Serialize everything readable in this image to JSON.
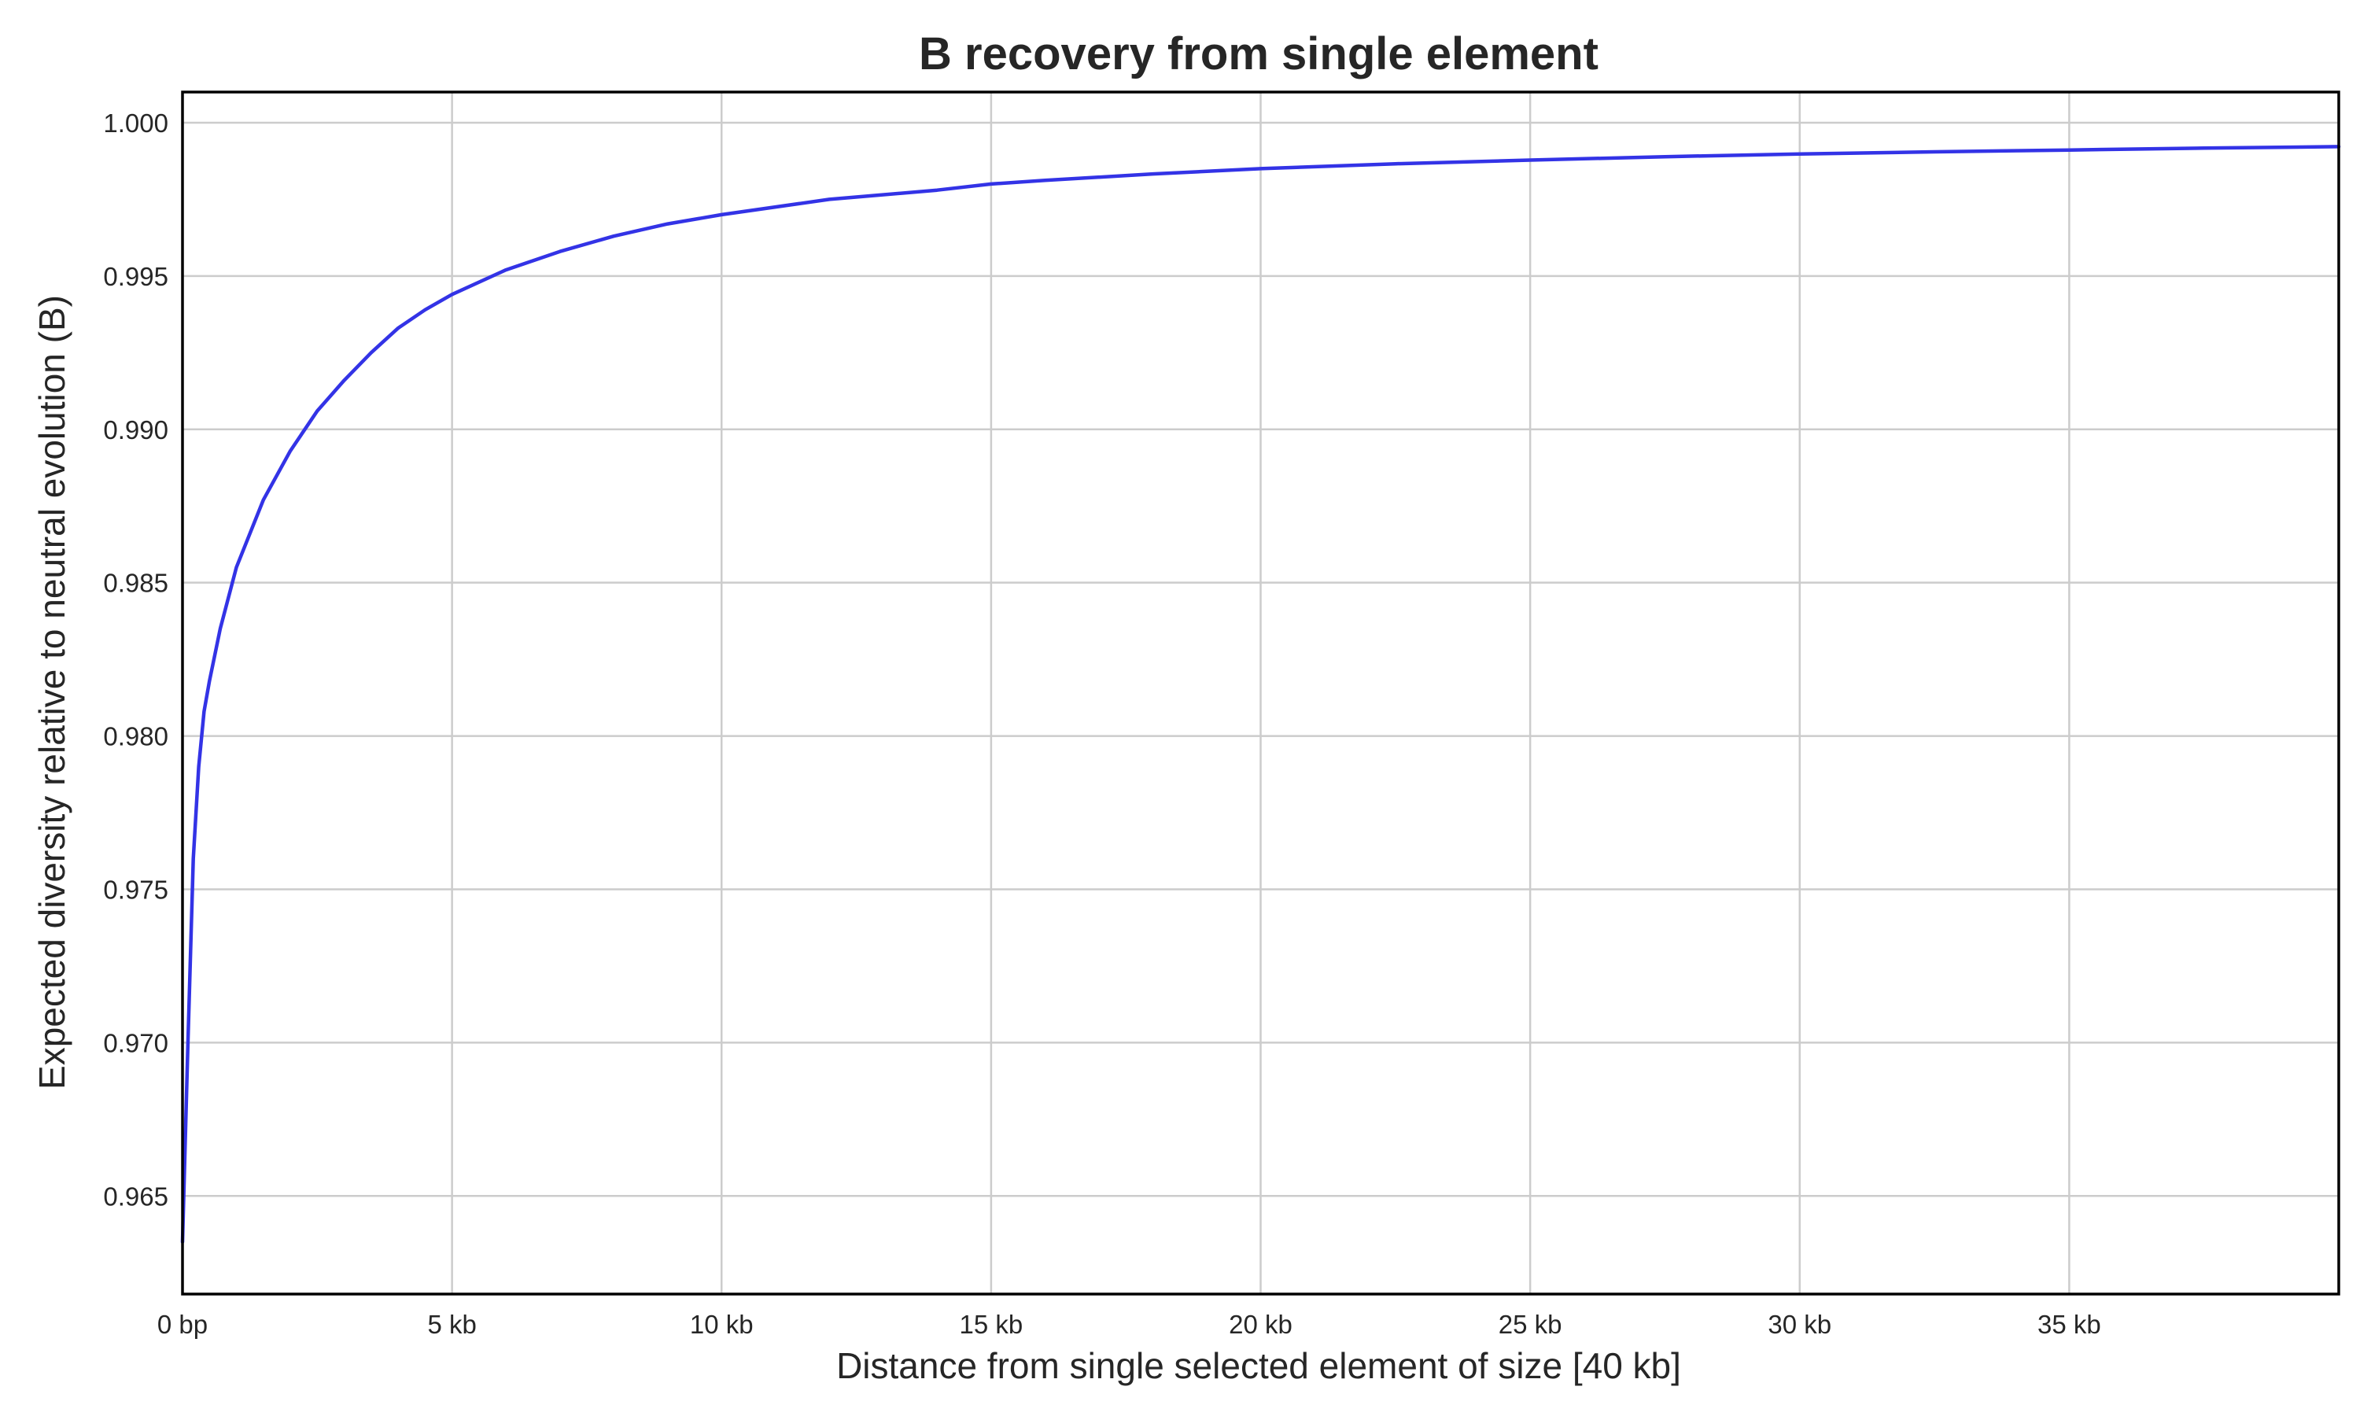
{
  "chart_data": {
    "type": "line",
    "title": "B recovery from single element",
    "xlabel": "Distance from single selected element of size [40 kb]",
    "ylabel": "Expected diversity relative to neutral evolution (B)",
    "xlim": [
      0,
      40000
    ],
    "ylim": [
      0.9618,
      1.001
    ],
    "grid": true,
    "x_ticks": [
      {
        "value": 0,
        "label": "0 bp"
      },
      {
        "value": 5000,
        "label": "5 kb"
      },
      {
        "value": 10000,
        "label": "10 kb"
      },
      {
        "value": 15000,
        "label": "15 kb"
      },
      {
        "value": 20000,
        "label": "20 kb"
      },
      {
        "value": 25000,
        "label": "25 kb"
      },
      {
        "value": 30000,
        "label": "30 kb"
      },
      {
        "value": 35000,
        "label": "35 kb"
      }
    ],
    "y_ticks": [
      {
        "value": 0.965,
        "label": "0.965"
      },
      {
        "value": 0.97,
        "label": "0.970"
      },
      {
        "value": 0.975,
        "label": "0.975"
      },
      {
        "value": 0.98,
        "label": "0.980"
      },
      {
        "value": 0.985,
        "label": "0.985"
      },
      {
        "value": 0.99,
        "label": "0.990"
      },
      {
        "value": 0.995,
        "label": "0.995"
      },
      {
        "value": 1.0,
        "label": "1.000"
      }
    ],
    "series": [
      {
        "color": "#3333e6",
        "x": [
          0,
          100,
          200,
          300,
          400,
          500,
          700,
          1000,
          1500,
          2000,
          2500,
          3000,
          3500,
          4000,
          4500,
          5000,
          6000,
          7000,
          8000,
          9000,
          10000,
          12000,
          14000,
          15000,
          16000,
          18000,
          20000,
          22500,
          25000,
          27500,
          30000,
          32500,
          35000,
          37500,
          40000
        ],
        "y": [
          0.9635,
          0.97,
          0.976,
          0.979,
          0.9808,
          0.9818,
          0.9835,
          0.9855,
          0.9877,
          0.9893,
          0.9906,
          0.9916,
          0.9925,
          0.9933,
          0.9939,
          0.9944,
          0.9952,
          0.9958,
          0.9963,
          0.9967,
          0.997,
          0.9975,
          0.9978,
          0.998,
          0.99812,
          0.99833,
          0.9985,
          0.99866,
          0.99878,
          0.99889,
          0.99898,
          0.99905,
          0.99911,
          0.99917,
          0.99922
        ]
      }
    ]
  }
}
